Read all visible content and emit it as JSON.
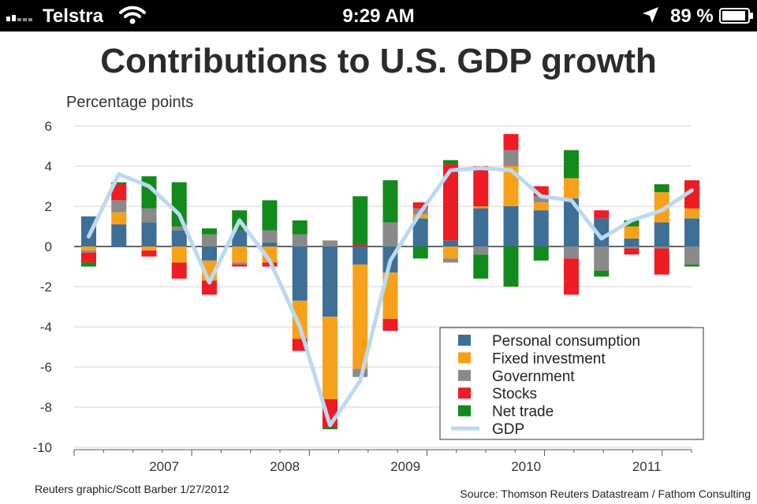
{
  "status_bar": {
    "carrier": "Telstra",
    "time": "9:29 AM",
    "battery": "89 %"
  },
  "chart_data": {
    "type": "bar",
    "stacked": true,
    "title": "Contributions to U.S. GDP growth",
    "ylabel": "Percentage points",
    "ylim": [
      -10,
      6
    ],
    "yticks": [
      "6",
      "4",
      "2",
      "0",
      "-2",
      "-4",
      "-6",
      "-8",
      "-10"
    ],
    "grid": true,
    "year_labels": [
      "2007",
      "2008",
      "2009",
      "2010",
      "2011"
    ],
    "quarters": [
      "2006 Q4",
      "2007 Q1",
      "2007 Q2",
      "2007 Q3",
      "2007 Q4",
      "2008 Q1",
      "2008 Q2",
      "2008 Q3",
      "2008 Q4",
      "2009 Q1",
      "2009 Q2",
      "2009 Q3",
      "2009 Q4",
      "2010 Q1",
      "2010 Q2",
      "2010 Q3",
      "2010 Q4",
      "2011 Q1",
      "2011 Q2",
      "2011 Q3",
      "2011 Q4"
    ],
    "series": [
      {
        "name": "Personal consumption",
        "color": "#3d6f97",
        "values": [
          1.5,
          1.1,
          1.2,
          0.8,
          -0.7,
          0.8,
          0.2,
          -2.7,
          -3.5,
          -0.9,
          -1.3,
          1.4,
          0.3,
          1.9,
          2.0,
          1.8,
          2.4,
          1.4,
          0.4,
          1.2,
          1.4
        ]
      },
      {
        "name": "Fixed investment",
        "color": "#f7a11a",
        "values": [
          -0.2,
          0.6,
          -0.2,
          -0.8,
          -1.0,
          -0.8,
          -0.8,
          -1.9,
          -4.1,
          -5.2,
          -2.3,
          0.2,
          -0.6,
          0.1,
          2.0,
          0.4,
          1.0,
          0.0,
          0.6,
          1.5,
          0.5
        ]
      },
      {
        "name": "Government",
        "color": "#8a8a8a",
        "values": [
          -0.1,
          0.6,
          0.7,
          0.2,
          0.6,
          -0.1,
          0.6,
          0.6,
          0.3,
          -0.4,
          1.2,
          0.3,
          -0.2,
          -0.4,
          0.8,
          0.3,
          -0.6,
          -1.2,
          -0.1,
          -0.1,
          -0.9
        ]
      },
      {
        "name": "Stocks",
        "color": "#ee1c24",
        "values": [
          -0.5,
          0.8,
          -0.3,
          -0.8,
          -0.7,
          -0.1,
          -0.2,
          -0.6,
          -1.4,
          0.1,
          -0.6,
          0.3,
          3.8,
          2.0,
          0.8,
          0.5,
          -1.8,
          0.4,
          -0.3,
          -1.3,
          1.4
        ]
      },
      {
        "name": "Net trade",
        "color": "#138a1c",
        "values": [
          -0.2,
          0.1,
          1.6,
          2.2,
          0.3,
          1.0,
          1.5,
          0.7,
          -0.1,
          2.4,
          2.1,
          -0.6,
          0.2,
          -1.2,
          -2.0,
          -0.7,
          1.4,
          -0.3,
          0.3,
          0.4,
          -0.1
        ]
      },
      {
        "name": "GDP",
        "color": "#bcd9f2",
        "type": "line",
        "values": [
          0.5,
          3.6,
          3.0,
          1.6,
          -1.8,
          1.3,
          -0.7,
          -4.0,
          -8.9,
          -6.7,
          -0.7,
          1.7,
          3.8,
          3.9,
          3.8,
          2.5,
          2.3,
          0.4,
          1.3,
          1.8,
          2.8
        ]
      }
    ],
    "credit": "Reuters graphic/Scott Barber  1/27/2012",
    "source": "Source: Thomson Reuters Datastream / Fathom Consulting"
  }
}
